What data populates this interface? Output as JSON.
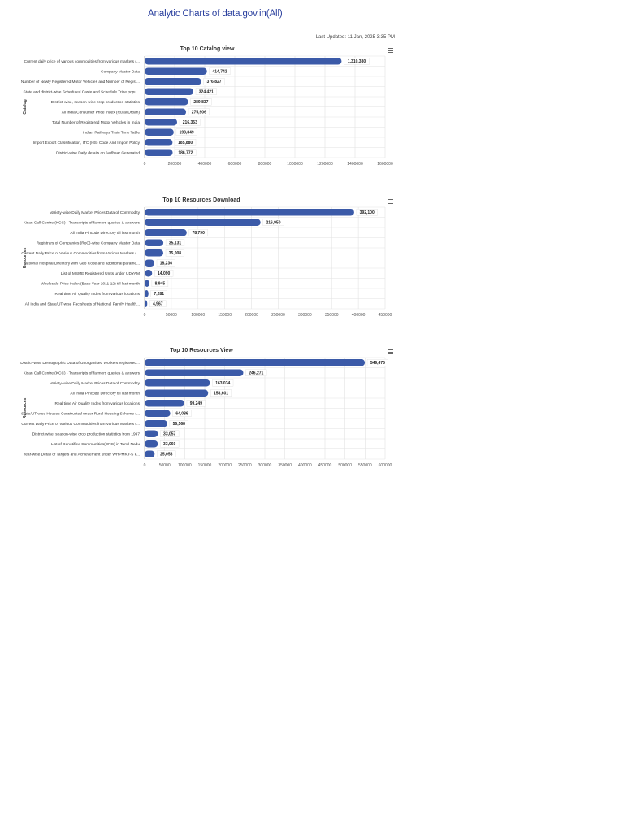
{
  "page": {
    "title": "Analytic Charts of data.gov.in(All)",
    "last_updated": "Last Updated: 11 Jan, 2025 3:35 PM"
  },
  "colors": {
    "bar": "#3b5aa8",
    "title": "#2a3f9e",
    "grid": "#e2e2e2"
  },
  "icons": {
    "menu": "hamburger-menu-icon"
  },
  "chart_data": [
    {
      "type": "bar",
      "orientation": "horizontal",
      "title": "Top 10 Catalog view",
      "ylabel": "Catalog",
      "xlim": [
        0,
        1600000
      ],
      "ticks": [
        0,
        200000,
        400000,
        600000,
        800000,
        1000000,
        1200000,
        1400000,
        1600000
      ],
      "grid": true,
      "categories": [
        "Current daily price of various commodities from various markets (...",
        "Company Master Data",
        "Number of Newly Registered Motor Vehicles and Number of Regist...",
        "State and district-wise Scheduled Caste and Schedule Tribe popu...",
        "District-wise, season-wise crop production statistics",
        "All India Consumer Price Index (Rural/Urban)",
        "Total Number of Registered Motor Vehicles in India",
        "Indian Railways Train Time Table",
        "Import Export Classification, ITC (HS) Code And Import Policy",
        "District-wise Daily details on Aadhaar Generated"
      ],
      "values": [
        1310380,
        414742,
        376827,
        324421,
        289837,
        275906,
        216353,
        193849,
        185880,
        186772
      ],
      "labels": [
        "1,310,380",
        "414,742",
        "376,827",
        "324,421",
        "289,837",
        "275,906",
        "216,353",
        "193,849",
        "185,880",
        "186,772"
      ]
    },
    {
      "type": "bar",
      "orientation": "horizontal",
      "title": "Top 10 Resources Download",
      "ylabel": "Resources",
      "xlim": [
        0,
        450000
      ],
      "ticks": [
        0,
        50000,
        100000,
        150000,
        200000,
        250000,
        300000,
        350000,
        400000,
        450000
      ],
      "grid": true,
      "categories": [
        "Variety-wise Daily Market Prices Data of Commodity",
        "Kisan Call Centre (KCC) - Transcripts of farmers queries & answers",
        "All India Pincode Directory till last month",
        "Registrars of Companies (RoC)-wise Company Master Data",
        "Current Daily Price of Various Commodities from Various Markets (...",
        "National Hospital Directory with Geo Code and additional parame...",
        "List of MSME Registered Units under UDYAM",
        "Wholesale Price Index (Base Year 2011-12) till last month",
        "Real time Air Quality Index from various locations",
        "All India and State/UT-wise Factsheets of National Family Health..."
      ],
      "values": [
        392100,
        216950,
        78790,
        35131,
        35008,
        18236,
        14090,
        8945,
        7281,
        4967
      ],
      "labels": [
        "392,100",
        "216,950",
        "78,790",
        "35,131",
        "35,008",
        "18,236",
        "14,090",
        "8,945",
        "7,281",
        "4,967"
      ]
    },
    {
      "type": "bar",
      "orientation": "horizontal",
      "title": "Top 10 Resources View",
      "ylabel": "Resources",
      "xlim": [
        0,
        600000
      ],
      "ticks": [
        0,
        50000,
        100000,
        150000,
        200000,
        250000,
        300000,
        350000,
        400000,
        450000,
        500000,
        550000,
        600000
      ],
      "grid": true,
      "categories": [
        "District-wise Demographic Data of Unorganised Workers registered...",
        "Kisan Call Centre (KCC) - Transcripts of farmers queries & answers",
        "Variety-wise Daily Market Prices Data of Commodity",
        "All India Pincode Directory till last month",
        "Real time Air Quality Index from various locations",
        "State/UT-wise Houses Constructed under Rural Housing Scheme (...",
        "Current Daily Price of Various Commodities from Various Markets (...",
        "District-wise, season-wise crop production statistics from 1997",
        "List of Denotified Communities(DNC) in Tamil Nadu",
        "Year-wise Detail of Targets and Achievement under WHPMKY-S F..."
      ],
      "values": [
        549475,
        246271,
        163034,
        158601,
        99249,
        64086,
        56568,
        33057,
        33060,
        25058
      ],
      "labels": [
        "549,475",
        "246,271",
        "163,034",
        "158,601",
        "99,249",
        "64,086",
        "56,568",
        "33,057",
        "33,060",
        "25,058"
      ]
    }
  ]
}
